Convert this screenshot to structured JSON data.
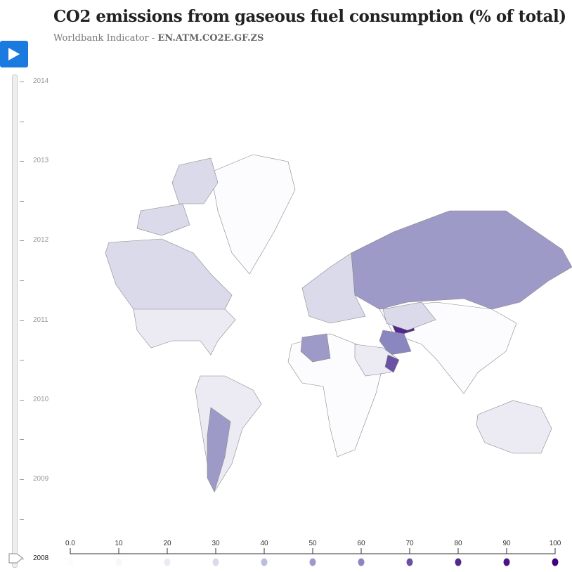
{
  "header": {
    "title": "CO2 emissions from gaseous fuel consumption (% of total)",
    "subtitle_prefix": "Worldbank Indicator - ",
    "indicator_code": "EN.ATM.CO2E.GF.ZS"
  },
  "controls": {
    "play_icon": "play-icon",
    "play_color": "#1a7ae0"
  },
  "timeline": {
    "years": [
      "2014",
      "2013",
      "2012",
      "2011",
      "2010",
      "2009",
      "2008"
    ],
    "selected": "2008"
  },
  "legend": {
    "ticks": [
      "0.0",
      "10",
      "20",
      "30",
      "40",
      "50",
      "60",
      "70",
      "80",
      "90",
      "100"
    ],
    "colors": [
      "#fcfbfd",
      "#f7f6fa",
      "#ecebf4",
      "#dadaeb",
      "#bcbddc",
      "#9e9ac8",
      "#8a86bf",
      "#6a51a3",
      "#54278f",
      "#4a1486",
      "#3f007d"
    ]
  },
  "regions": [
    {
      "name": "North America",
      "color": "#dadaeb"
    },
    {
      "name": "United States",
      "color": "#ecebf4"
    },
    {
      "name": "Greenland",
      "color": "#fcfbfd"
    },
    {
      "name": "South America",
      "color": "#ecebf4"
    },
    {
      "name": "Argentina",
      "color": "#9e9ac8"
    },
    {
      "name": "Africa",
      "color": "#fcfbfd"
    },
    {
      "name": "Algeria",
      "color": "#9e9ac8"
    },
    {
      "name": "Europe",
      "color": "#dadaeb"
    },
    {
      "name": "Russia",
      "color": "#9e9ac8"
    },
    {
      "name": "Asia",
      "color": "#fcfbfd"
    },
    {
      "name": "Turkmenistan",
      "color": "#54278f"
    },
    {
      "name": "Iran",
      "color": "#8a86bf"
    },
    {
      "name": "Kazakhstan",
      "color": "#dadaeb"
    },
    {
      "name": "Australia",
      "color": "#ecebf4"
    },
    {
      "name": "Arabia",
      "color": "#ecebf4"
    },
    {
      "name": "Oman",
      "color": "#6a51a3"
    },
    {
      "name": "Canadian Arctic",
      "color": "#dadaeb"
    }
  ]
}
